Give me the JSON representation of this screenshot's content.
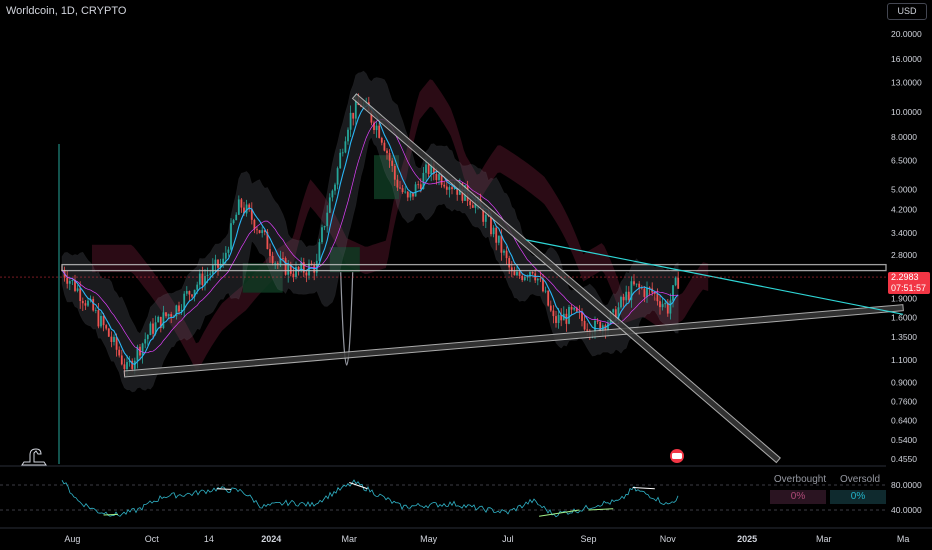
{
  "header": {
    "symbol_title": "Worldcoin, 1D, CRYPTO",
    "currency": "USD"
  },
  "price_tag": {
    "last_price": "2.2983",
    "countdown": "07:51:57"
  },
  "rsi_table": {
    "overbought_label": "Overbought",
    "oversold_label": "Oversold",
    "overbought_value": "0%",
    "oversold_value": "0%"
  },
  "colors": {
    "background": "#000000",
    "up": "#26a69a",
    "down": "#ef5350",
    "trendline": "#c8c8c8",
    "resistance_line": "#2fd6d6",
    "rsi_line": "#2fb3c7",
    "cloud_bear": "#3a0f1c",
    "cloud_bull": "#0f3a22",
    "price_tag": "#f23645"
  },
  "chart_data": [
    {
      "type": "candlestick",
      "title": "Worldcoin, 1D, CRYPTO",
      "price_scale": "log",
      "y_ticks": [
        "20.0000",
        "16.0000",
        "13.0000",
        "10.0000",
        "8.0000",
        "6.5000",
        "5.0000",
        "4.2000",
        "3.4000",
        "2.8000",
        "1.9000",
        "1.6000",
        "1.3500",
        "1.1000",
        "0.9000",
        "0.7600",
        "0.6400",
        "0.5400",
        "0.4550"
      ],
      "x_ticks": [
        "Aug",
        "Oct",
        "14",
        "2024",
        "Mar",
        "May",
        "Jul",
        "Sep",
        "Nov",
        "2025",
        "Mar",
        "Ma"
      ],
      "price_path": {
        "dates": [
          "2023-07-24",
          "2023-08-02",
          "2023-08-15",
          "2023-09-01",
          "2023-09-12",
          "2023-10-01",
          "2023-10-20",
          "2023-11-10",
          "2023-11-25",
          "2023-12-08",
          "2023-12-20",
          "2024-01-05",
          "2024-01-20",
          "2024-02-05",
          "2024-02-20",
          "2024-03-01",
          "2024-03-10",
          "2024-03-25",
          "2024-04-05",
          "2024-04-15",
          "2024-05-01",
          "2024-05-20",
          "2024-06-05",
          "2024-06-20",
          "2024-07-05",
          "2024-07-20",
          "2024-08-05",
          "2024-08-20",
          "2024-09-05",
          "2024-09-20",
          "2024-10-05",
          "2024-10-20",
          "2024-11-01",
          "2024-11-10"
        ],
        "close": [
          2.45,
          2.15,
          1.75,
          1.28,
          1.0,
          1.45,
          1.75,
          2.3,
          2.6,
          4.4,
          3.7,
          2.6,
          2.4,
          2.55,
          5.6,
          9.5,
          10.8,
          8.3,
          5.5,
          4.5,
          6.0,
          5.2,
          4.5,
          3.4,
          2.25,
          2.5,
          1.55,
          1.65,
          1.45,
          1.6,
          2.1,
          2.0,
          1.75,
          2.3
        ]
      },
      "annotations": [
        {
          "kind": "horizontal-resistance",
          "price": 2.5
        },
        {
          "kind": "support-trendline",
          "from": {
            "date": "2023-09-10",
            "price": 0.97
          },
          "to": {
            "date": "2025-05-01",
            "price": 1.75
          }
        },
        {
          "kind": "descending-trendline",
          "from": {
            "date": "2024-03-05",
            "price": 11.5
          },
          "to": {
            "date": "2025-01-25",
            "price": 0.45
          }
        },
        {
          "kind": "descending-resistance",
          "from": {
            "date": "2024-07-15",
            "price": 3.2
          },
          "to": {
            "date": "2025-05-01",
            "price": 1.65
          }
        }
      ]
    },
    {
      "type": "line",
      "title": "RSI",
      "y_ticks": [
        "80.0000",
        "40.0000"
      ],
      "overbought_level": 80,
      "oversold_level": 40,
      "rsi_path": {
        "dates": [
          "2023-07-24",
          "2023-08-05",
          "2023-08-20",
          "2023-09-05",
          "2023-09-20",
          "2023-10-10",
          "2023-11-01",
          "2023-11-20",
          "2023-12-10",
          "2023-12-25",
          "2024-01-15",
          "2024-02-01",
          "2024-02-20",
          "2024-03-05",
          "2024-03-20",
          "2024-04-10",
          "2024-05-01",
          "2024-05-20",
          "2024-06-10",
          "2024-07-01",
          "2024-07-20",
          "2024-08-05",
          "2024-08-25",
          "2024-09-10",
          "2024-09-25",
          "2024-10-05",
          "2024-10-20",
          "2024-11-01",
          "2024-11-10"
        ],
        "values": [
          88,
          55,
          38,
          32,
          40,
          62,
          66,
          74,
          70,
          45,
          52,
          48,
          70,
          84,
          68,
          45,
          48,
          50,
          42,
          36,
          55,
          33,
          40,
          50,
          54,
          74,
          62,
          48,
          62
        ]
      }
    }
  ]
}
